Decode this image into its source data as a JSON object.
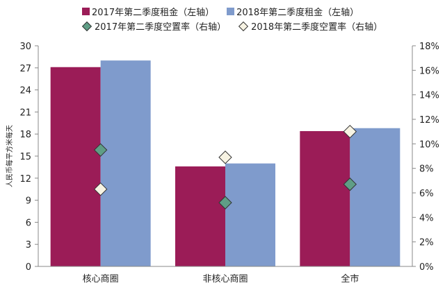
{
  "chart_data": {
    "type": "bar",
    "categories": [
      "核心商圈",
      "非核心商圈",
      "全市"
    ],
    "series": [
      {
        "name": "2017年第二季度租金（左轴）",
        "kind": "bar",
        "axis": "left",
        "color": "#9b1c57",
        "values": [
          27.1,
          13.6,
          18.4
        ]
      },
      {
        "name": "2018年第二季度租金（左轴）",
        "kind": "bar",
        "axis": "left",
        "color": "#7f9bcc",
        "values": [
          28.0,
          14.0,
          18.8
        ]
      },
      {
        "name": "2017年第二季度空置率（右轴）",
        "kind": "marker",
        "axis": "right",
        "color": "#5f9e86",
        "values": [
          9.5,
          5.2,
          6.7
        ]
      },
      {
        "name": "2018年第二季度空置率（右轴）",
        "kind": "marker",
        "axis": "right",
        "color": "#f7f3e3",
        "values": [
          6.3,
          8.9,
          11.0
        ]
      }
    ],
    "ylabel": "人民币每平方米每天",
    "ylim": [
      0,
      30
    ],
    "yticks": [
      "0",
      "3",
      "6",
      "9",
      "12",
      "15",
      "18",
      "21",
      "24",
      "27",
      "30"
    ],
    "y2lim": [
      0,
      18
    ],
    "y2ticks": [
      "0%",
      "2%",
      "4%",
      "6%",
      "8%",
      "10%",
      "12%",
      "14%",
      "16%",
      "18%"
    ],
    "grid": false,
    "legend_position": "top"
  }
}
